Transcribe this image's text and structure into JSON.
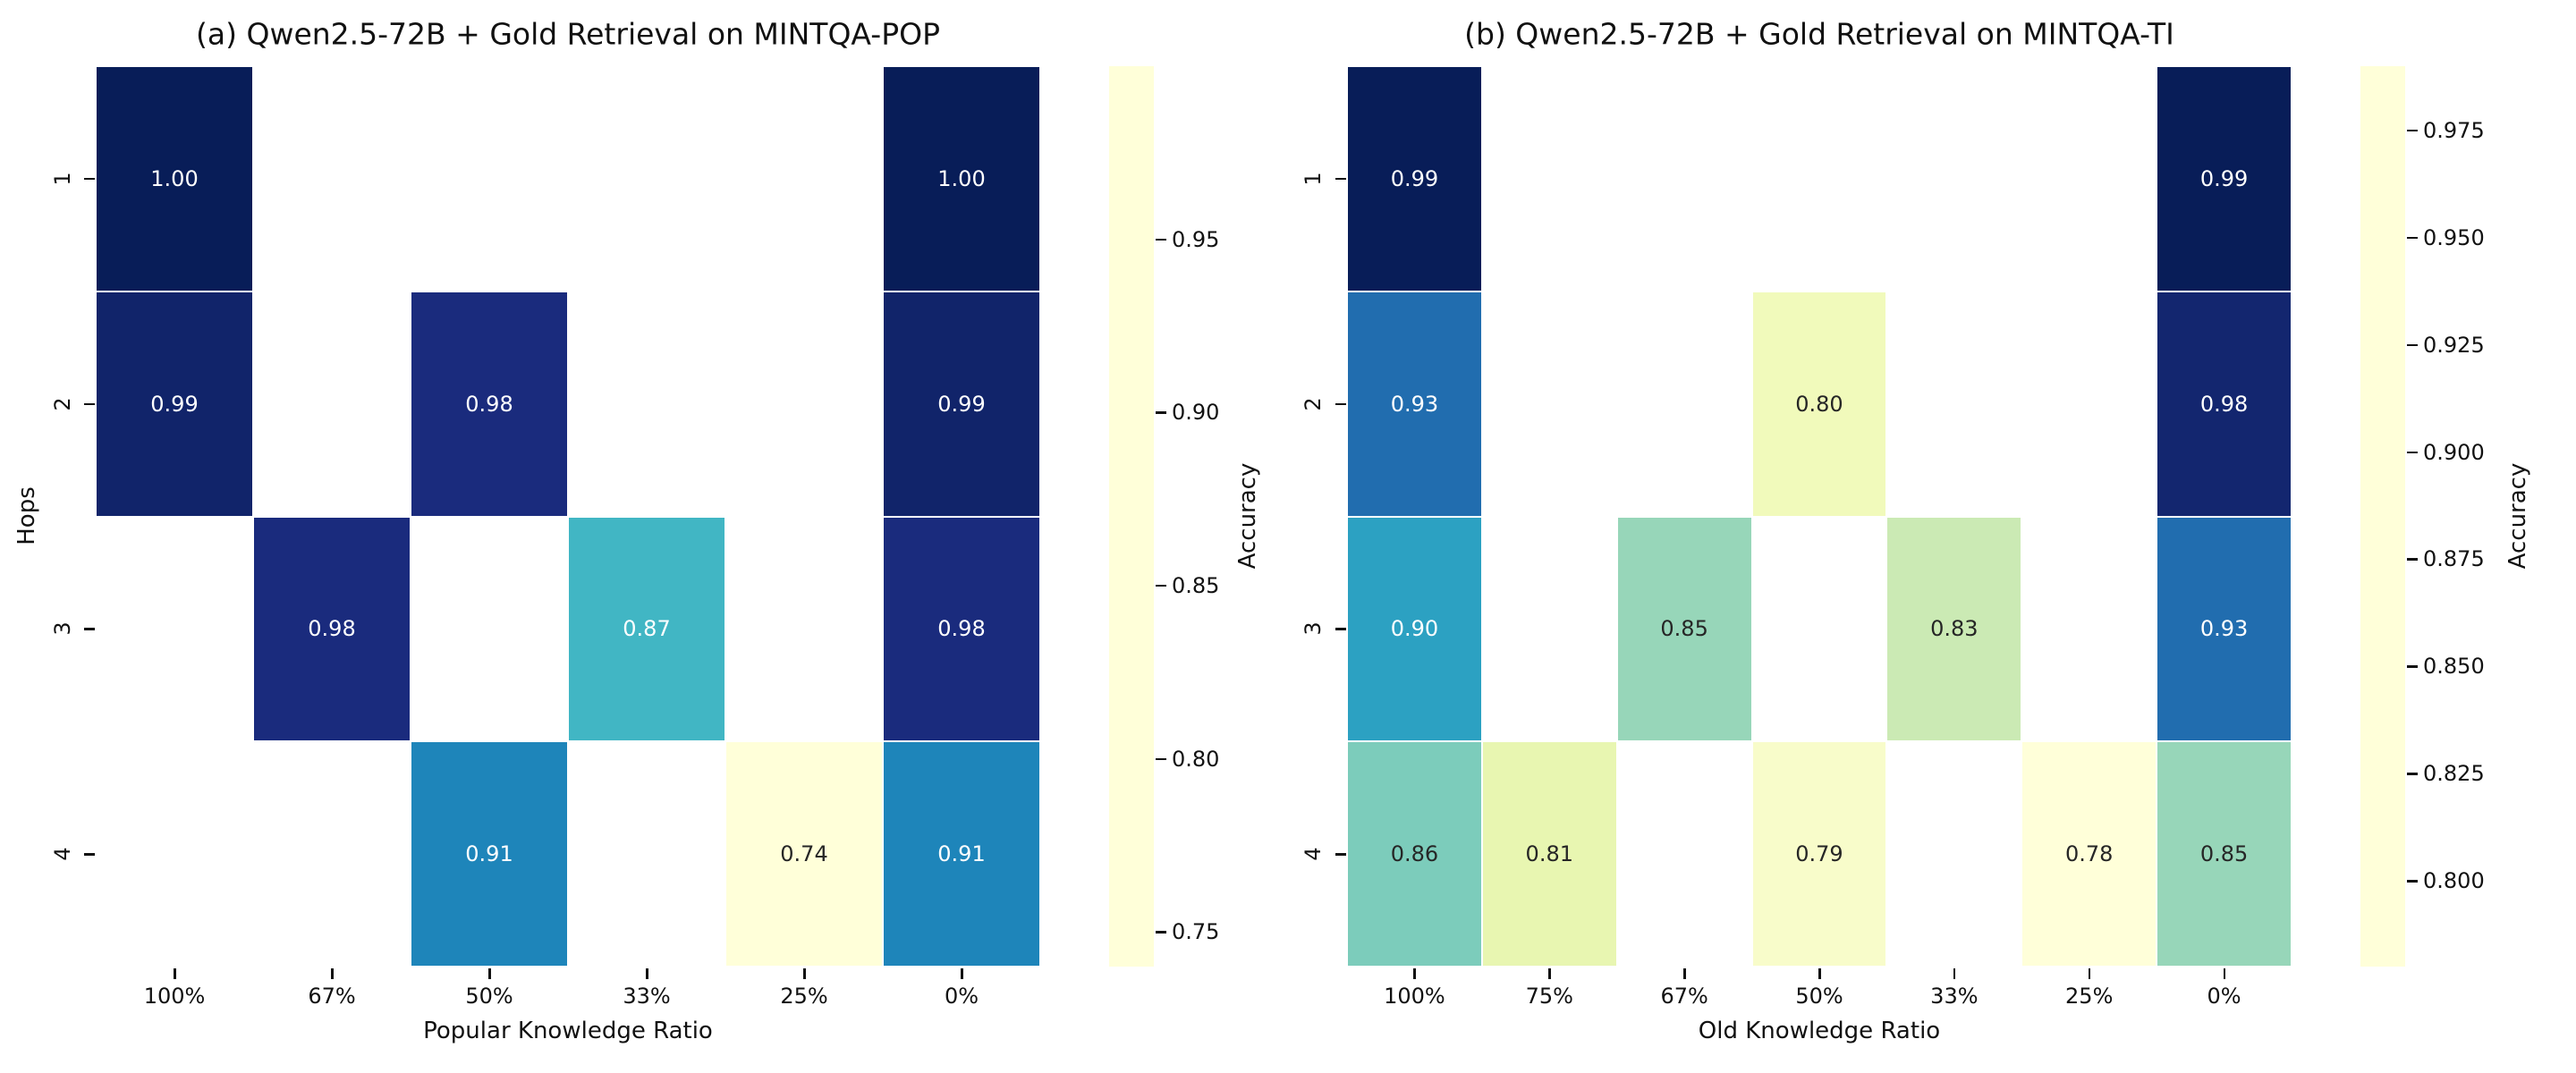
{
  "figure": {
    "background": "#ffffff",
    "colorbar_label": "Accuracy"
  },
  "chart_data": [
    {
      "type": "heatmap",
      "title": "(a) Qwen2.5-72B + Gold Retrieval on MINTQA-POP",
      "xlabel": "Popular Knowledge Ratio",
      "ylabel": "Hops",
      "x_categories": [
        "100%",
        "67%",
        "50%",
        "33%",
        "25%",
        "0%"
      ],
      "y_categories": [
        "1",
        "2",
        "3",
        "4"
      ],
      "values": [
        [
          1.0,
          null,
          null,
          null,
          null,
          1.0
        ],
        [
          0.99,
          null,
          0.98,
          null,
          null,
          0.99
        ],
        [
          null,
          0.98,
          null,
          0.87,
          null,
          0.98
        ],
        [
          null,
          null,
          0.91,
          null,
          0.74,
          0.91
        ]
      ],
      "annot_decimals": 2,
      "vmin": 0.74,
      "vmax": 1.0,
      "colorbar": {
        "label": "Accuracy",
        "tick_values": [
          0.95,
          0.9,
          0.85,
          0.8,
          0.75
        ],
        "tick_labels": [
          "0.95",
          "0.90",
          "0.85",
          "0.80",
          "0.75"
        ]
      },
      "colormap": "YlGnBu",
      "grid": false,
      "missing_cell_color": "#ffffff"
    },
    {
      "type": "heatmap",
      "title": "(b) Qwen2.5-72B + Gold Retrieval on MINTQA-TI",
      "xlabel": "Old Knowledge Ratio",
      "ylabel": "",
      "x_categories": [
        "100%",
        "75%",
        "67%",
        "50%",
        "33%",
        "25%",
        "0%"
      ],
      "y_categories": [
        "1",
        "2",
        "3",
        "4"
      ],
      "values": [
        [
          0.99,
          null,
          null,
          null,
          null,
          null,
          0.99
        ],
        [
          0.93,
          null,
          null,
          0.8,
          null,
          null,
          0.98
        ],
        [
          0.9,
          null,
          0.85,
          null,
          0.83,
          null,
          0.93
        ],
        [
          0.86,
          0.81,
          null,
          0.79,
          null,
          0.78,
          0.85
        ]
      ],
      "annot_decimals": 2,
      "vmin": 0.78,
      "vmax": 0.99,
      "colorbar": {
        "label": "Accuracy",
        "tick_values": [
          0.975,
          0.95,
          0.925,
          0.9,
          0.875,
          0.85,
          0.825,
          0.8
        ],
        "tick_labels": [
          "0.975",
          "0.950",
          "0.925",
          "0.900",
          "0.875",
          "0.850",
          "0.825",
          "0.800"
        ]
      },
      "colormap": "YlGnBu",
      "grid": false,
      "missing_cell_color": "#ffffff"
    }
  ],
  "style": {
    "colormap_stops": [
      "#ffffd9",
      "#edf8b1",
      "#c7e9b4",
      "#7fcdbb",
      "#41b6c4",
      "#1d91c0",
      "#225ea8",
      "#253494",
      "#081d58"
    ],
    "annotation_color_light": "#ffffff",
    "annotation_color_dark": "#262626",
    "tick_color": "#111111"
  }
}
